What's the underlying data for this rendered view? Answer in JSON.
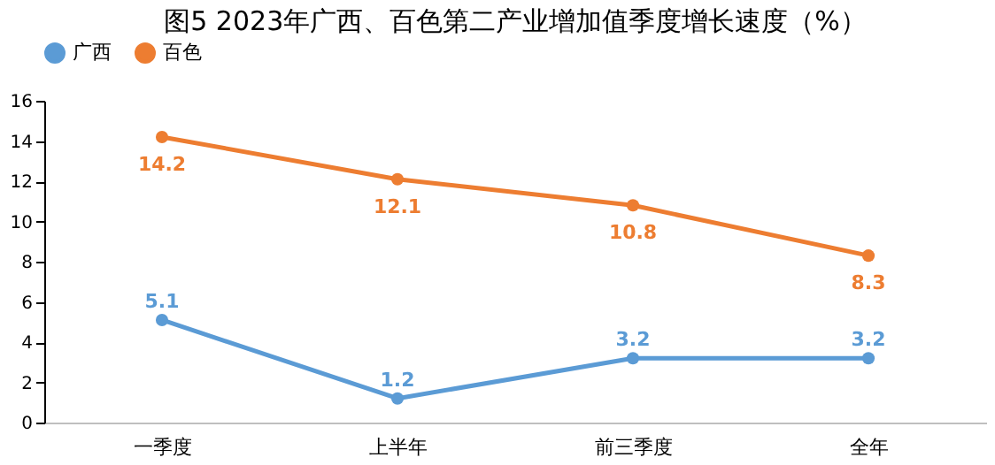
{
  "chart_data": {
    "type": "line",
    "title": "图5 2023年广西、百色第二产业增加值季度增长速度（%）",
    "categories": [
      "一季度",
      "上半年",
      "前三季度",
      "全年"
    ],
    "series": [
      {
        "name": "广西",
        "color": "#5b9bd5",
        "values": [
          5.1,
          1.2,
          3.2,
          3.2
        ]
      },
      {
        "name": "百色",
        "color": "#ed7d31",
        "values": [
          14.2,
          12.1,
          10.8,
          8.3
        ]
      }
    ],
    "ylim": [
      0,
      16
    ],
    "yticks": [
      0,
      2,
      4,
      6,
      8,
      10,
      12,
      14,
      16
    ],
    "grid": false,
    "legend": "top",
    "marker": "circle",
    "line_style": "solid",
    "data_labels": true
  }
}
